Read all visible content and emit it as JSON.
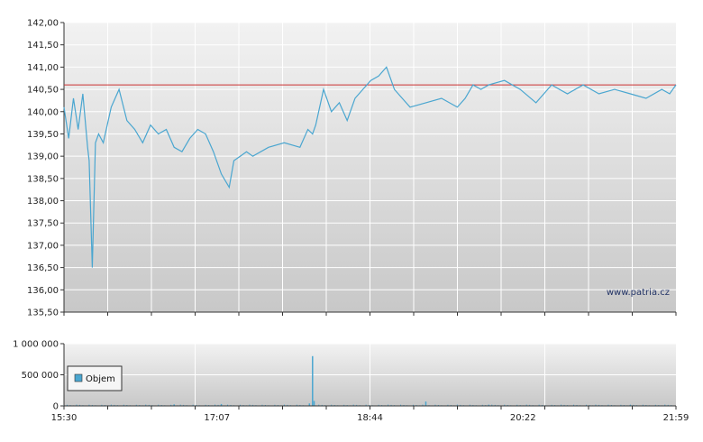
{
  "watermark": "www.patria.cz",
  "colors": {
    "price_line": "#4aa6d0",
    "reference_line": "#cc3333",
    "volume_bar": "#4aa6d0",
    "grid": "#ffffff",
    "plot_top": "#f2f2f2",
    "plot_bottom": "#c8c8c8"
  },
  "chart_data": [
    {
      "type": "line",
      "name": "price",
      "ylim": [
        135.5,
        142.0
      ],
      "y_ticks": [
        "142,00",
        "141,50",
        "141,00",
        "140,50",
        "140,00",
        "139,50",
        "139,00",
        "138,50",
        "138,00",
        "137,50",
        "137,00",
        "136,50",
        "136,00",
        "135,50"
      ],
      "y_tick_values": [
        142.0,
        141.5,
        141.0,
        140.5,
        140.0,
        139.5,
        139.0,
        138.5,
        138.0,
        137.5,
        137.0,
        136.5,
        136.0,
        135.5
      ],
      "reference_value": 140.6,
      "grid": true,
      "time_range": [
        "15:30",
        "21:59"
      ],
      "series": [
        {
          "x": [
            "15:30",
            "15:33",
            "15:36",
            "15:39",
            "15:42",
            "15:45",
            "15:46",
            "15:48",
            "15:50",
            "15:52",
            "15:55",
            "16:00",
            "16:05",
            "16:10",
            "16:15",
            "16:20",
            "16:25",
            "16:30",
            "16:35",
            "16:40",
            "16:45",
            "16:50",
            "16:55",
            "17:00",
            "17:05",
            "17:10",
            "17:15",
            "17:18",
            "17:22",
            "17:26",
            "17:30",
            "17:40",
            "17:50",
            "18:00",
            "18:05",
            "18:08",
            "18:10",
            "18:15",
            "18:20",
            "18:25",
            "18:30",
            "18:35",
            "18:40",
            "18:45",
            "18:50",
            "18:55",
            "19:00",
            "19:05",
            "19:10",
            "19:20",
            "19:30",
            "19:40",
            "19:45",
            "19:50",
            "19:55",
            "20:00",
            "20:10",
            "20:20",
            "20:30",
            "20:35",
            "20:40",
            "20:45",
            "20:50",
            "21:00",
            "21:10",
            "21:20",
            "21:30",
            "21:40",
            "21:50",
            "21:55",
            "21:59"
          ],
          "values": [
            140.1,
            139.4,
            140.3,
            139.6,
            140.4,
            139.2,
            138.9,
            136.5,
            139.3,
            139.5,
            139.3,
            140.1,
            140.5,
            139.8,
            139.6,
            139.3,
            139.7,
            139.5,
            139.6,
            139.2,
            139.1,
            139.4,
            139.6,
            139.5,
            139.1,
            138.6,
            138.3,
            138.9,
            139.0,
            139.1,
            139.0,
            139.2,
            139.3,
            139.2,
            139.6,
            139.5,
            139.7,
            140.5,
            140.0,
            140.2,
            139.8,
            140.3,
            140.5,
            140.7,
            140.8,
            141.0,
            140.5,
            140.3,
            140.1,
            140.2,
            140.3,
            140.1,
            140.3,
            140.6,
            140.5,
            140.6,
            140.7,
            140.5,
            140.2,
            140.4,
            140.6,
            140.5,
            140.4,
            140.6,
            140.4,
            140.5,
            140.4,
            140.3,
            140.5,
            140.4,
            140.6
          ]
        }
      ]
    },
    {
      "type": "bar",
      "name": "volume",
      "ylim": [
        0,
        1000000
      ],
      "y_ticks": [
        "1 000 000",
        "500 000",
        "0"
      ],
      "y_tick_values": [
        1000000,
        500000,
        0
      ],
      "x_ticks": [
        "15:30",
        "17:07",
        "18:44",
        "20:22",
        "21:59"
      ],
      "legend": "Objem",
      "legend_position": "left",
      "spikes": [
        {
          "x": "18:08",
          "value": 800000
        },
        {
          "x": "18:09",
          "value": 80000
        },
        {
          "x": "18:06",
          "value": 40000
        },
        {
          "x": "19:20",
          "value": 70000
        },
        {
          "x": "16:40",
          "value": 25000
        },
        {
          "x": "17:10",
          "value": 30000
        },
        {
          "x": "20:00",
          "value": 20000
        },
        {
          "x": "21:30",
          "value": 15000
        }
      ],
      "baseline": 15000
    }
  ]
}
